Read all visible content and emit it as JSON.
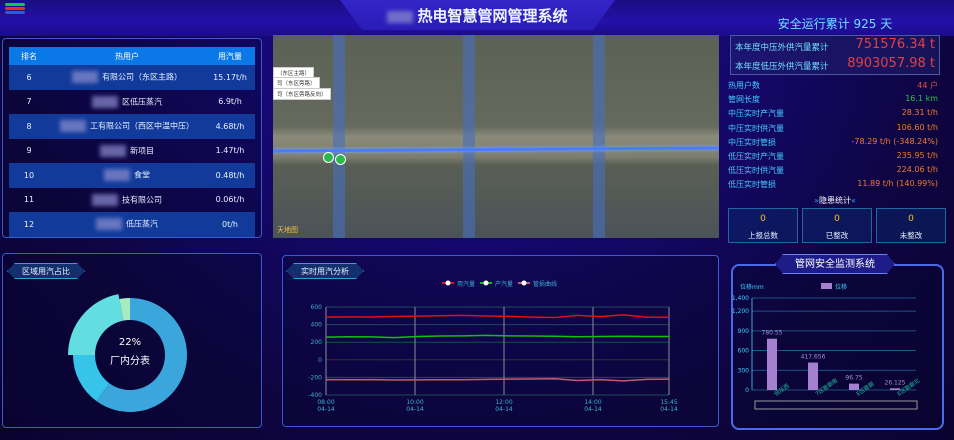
{
  "header": {
    "title": "热电智慧管网管理系统"
  },
  "ranking": {
    "columns": [
      "排名",
      "热用户",
      "用汽量"
    ],
    "rows": [
      {
        "rank": "6",
        "user": "有限公司（东区主路）",
        "usage": "15.17t/h"
      },
      {
        "rank": "7",
        "user": "区低压蒸汽",
        "usage": "6.9t/h"
      },
      {
        "rank": "8",
        "user": "工有限公司（西区中温中压）",
        "usage": "4.68t/h"
      },
      {
        "rank": "9",
        "user": "新项目",
        "usage": "1.47t/h"
      },
      {
        "rank": "10",
        "user": "食堂",
        "usage": "0.48t/h"
      },
      {
        "rank": "11",
        "user": "技有限公司",
        "usage": "0.06t/h"
      },
      {
        "rank": "12",
        "user": "低压蒸汽",
        "usage": "0t/h"
      }
    ]
  },
  "donut": {
    "title": "区域用汽占比",
    "center_value": "22%",
    "center_label": "厂内分表",
    "chart_data": {
      "type": "pie",
      "values": [
        60,
        15,
        22,
        3
      ],
      "colors": [
        "#3aa6dc",
        "#36c4ea",
        "#62dde0",
        "#a6ecc0"
      ],
      "highlighted_index": 2
    }
  },
  "map": {
    "labels": [
      "（东区主路）",
      "司（东区旁路）",
      "司（东区旁路反向）"
    ],
    "watermark": "天地图"
  },
  "stats": {
    "safe_days_label": "安全运行累计 925 天",
    "totals": [
      {
        "label": "本年度中压外供汽量累计",
        "value": "751576.34 t"
      },
      {
        "label": "本年度低压外供汽量累计",
        "value": "8903057.98 t"
      }
    ],
    "items": [
      {
        "label": "热用户数",
        "value": "44 户",
        "color": "#e0503a"
      },
      {
        "label": "管网长度",
        "value": "16.1 km",
        "color": "#27c24c"
      },
      {
        "label": "中压实时产汽量",
        "value": "28.31 t/h",
        "color": "#f07a2a"
      },
      {
        "label": "中压实时供汽量",
        "value": "106.60 t/h",
        "color": "#f07a2a"
      },
      {
        "label": "中压实时管损",
        "value": "-78.29 t/h (-348.24%)",
        "color": "#f07a2a"
      },
      {
        "label": "低压实时产汽量",
        "value": "235.95 t/h",
        "color": "#f07a2a"
      },
      {
        "label": "低压实时供汽量",
        "value": "224.06 t/h",
        "color": "#f07a2a"
      },
      {
        "label": "低压实时管损",
        "value": "11.89 t/h (140.99%)",
        "color": "#f07a2a"
      }
    ],
    "hazard_title": "隐患统计",
    "hazard": [
      {
        "value": "0",
        "label": "上报总数"
      },
      {
        "value": "0",
        "label": "已整改"
      },
      {
        "value": "0",
        "label": "未整改"
      }
    ]
  },
  "line_chart": {
    "title": "实时用汽分析",
    "chart_data": {
      "type": "line",
      "ylim": [
        -400,
        600
      ],
      "yticks": [
        "600",
        "400",
        "200",
        "0",
        "-200",
        "-400"
      ],
      "xticks": [
        [
          "08:00",
          "04-14"
        ],
        [
          "10:00",
          "04-14"
        ],
        [
          "12:00",
          "04-14"
        ],
        [
          "14:00",
          "04-14"
        ],
        [
          "15:45",
          "04-14"
        ]
      ],
      "series": [
        {
          "name": "用汽量",
          "color": "#e0101a",
          "values": [
            485,
            488,
            487,
            492,
            497,
            500,
            505,
            498,
            493,
            485,
            480,
            505,
            490,
            510,
            485,
            484
          ]
        },
        {
          "name": "产汽量",
          "color": "#10c010",
          "values": [
            258,
            262,
            260,
            252,
            265,
            270,
            272,
            278,
            272,
            270,
            268,
            262,
            265,
            268,
            265,
            265
          ]
        },
        {
          "name": "管损曲线",
          "color": "#c05a70",
          "values": [
            -225,
            -226,
            -225,
            -230,
            -228,
            -226,
            -226,
            -222,
            -220,
            -218,
            -215,
            -235,
            -225,
            -240,
            -222,
            -220
          ]
        }
      ]
    }
  },
  "bar_chart": {
    "title": "管网安全监测系统",
    "ylabel": "位移mm",
    "legend": "位移",
    "chart_data": {
      "type": "bar",
      "ylim": [
        0,
        1400
      ],
      "yticks": [
        "1,400",
        "1,200",
        "900",
        "600",
        "300",
        "0"
      ],
      "color": "#a57fd0",
      "categories": [
        "低压西",
        "7区管廊南",
        "E区管廊",
        "E区管廊北"
      ],
      "values": [
        780.55,
        417.656,
        96.75,
        26.125
      ],
      "labels": [
        "780.55",
        "417.656",
        "96.75",
        "26.125"
      ]
    }
  }
}
